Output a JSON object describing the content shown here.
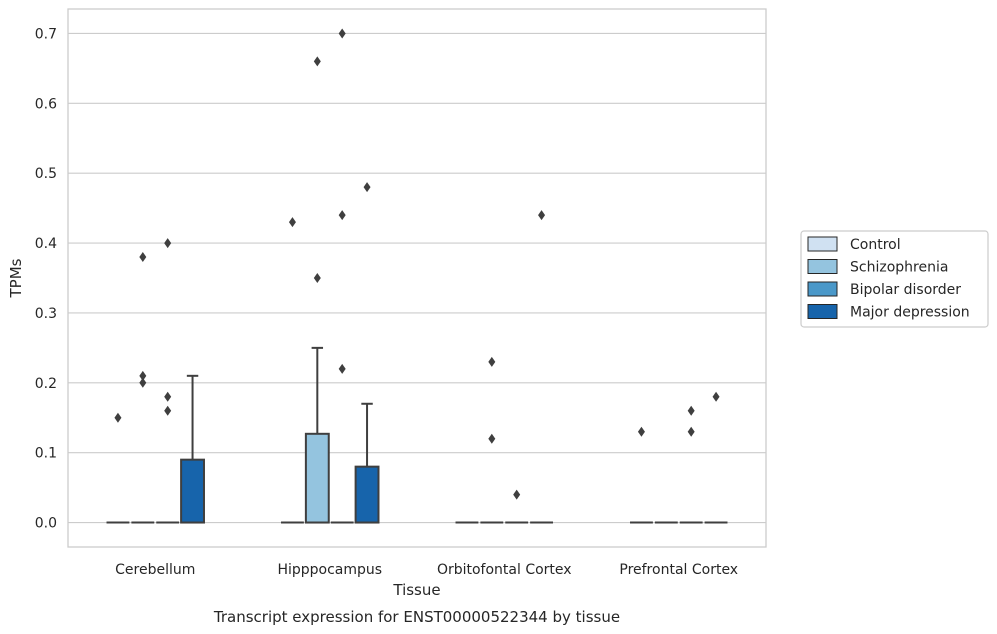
{
  "chart_data": {
    "type": "box",
    "title": "Transcript expression for ENST00000522344 by tissue",
    "xlabel": "Tissue",
    "ylabel": "TPMs",
    "ylim": [
      -0.035,
      0.735
    ],
    "yticks": [
      "0.0",
      "0.1",
      "0.2",
      "0.3",
      "0.4",
      "0.5",
      "0.6",
      "0.7"
    ],
    "grid": "horizontal",
    "legend_position": "right",
    "categories": [
      "Cerebellum",
      "Hipppocampus",
      "Orbitofontal Cortex",
      "Prefrontal Cortex"
    ],
    "series": [
      {
        "name": "Control",
        "color": "#d0e1f2"
      },
      {
        "name": "Schizophrenia",
        "color": "#94c4df"
      },
      {
        "name": "Bipolar disorder",
        "color": "#4a98c9"
      },
      {
        "name": "Major depression",
        "color": "#1764ab"
      }
    ],
    "boxes": [
      {
        "category": "Cerebellum",
        "series": "Control",
        "q1": 0,
        "median": 0,
        "q3": 0,
        "whisker_low": 0,
        "whisker_high": 0,
        "outliers": [
          0.15
        ]
      },
      {
        "category": "Cerebellum",
        "series": "Schizophrenia",
        "q1": 0,
        "median": 0,
        "q3": 0,
        "whisker_low": 0,
        "whisker_high": 0,
        "outliers": [
          0.38,
          0.21,
          0.2
        ]
      },
      {
        "category": "Cerebellum",
        "series": "Bipolar disorder",
        "q1": 0,
        "median": 0,
        "q3": 0,
        "whisker_low": 0,
        "whisker_high": 0,
        "outliers": [
          0.4,
          0.18,
          0.16
        ]
      },
      {
        "category": "Cerebellum",
        "series": "Major depression",
        "q1": 0,
        "median": 0,
        "q3": 0.09,
        "whisker_low": 0,
        "whisker_high": 0.21,
        "outliers": []
      },
      {
        "category": "Hipppocampus",
        "series": "Control",
        "q1": 0,
        "median": 0,
        "q3": 0,
        "whisker_low": 0,
        "whisker_high": 0,
        "outliers": [
          0.43
        ]
      },
      {
        "category": "Hipppocampus",
        "series": "Schizophrenia",
        "q1": 0,
        "median": 0,
        "q3": 0.127,
        "whisker_low": 0,
        "whisker_high": 0.25,
        "outliers": [
          0.66,
          0.35
        ]
      },
      {
        "category": "Hipppocampus",
        "series": "Bipolar disorder",
        "q1": 0,
        "median": 0,
        "q3": 0,
        "whisker_low": 0,
        "whisker_high": 0,
        "outliers": [
          0.7,
          0.44,
          0.22
        ]
      },
      {
        "category": "Hipppocampus",
        "series": "Major depression",
        "q1": 0,
        "median": 0,
        "q3": 0.08,
        "whisker_low": 0,
        "whisker_high": 0.17,
        "outliers": [
          0.48
        ]
      },
      {
        "category": "Orbitofontal Cortex",
        "series": "Control",
        "q1": 0,
        "median": 0,
        "q3": 0,
        "whisker_low": 0,
        "whisker_high": 0,
        "outliers": []
      },
      {
        "category": "Orbitofontal Cortex",
        "series": "Schizophrenia",
        "q1": 0,
        "median": 0,
        "q3": 0,
        "whisker_low": 0,
        "whisker_high": 0,
        "outliers": [
          0.23,
          0.12
        ]
      },
      {
        "category": "Orbitofontal Cortex",
        "series": "Bipolar disorder",
        "q1": 0,
        "median": 0,
        "q3": 0,
        "whisker_low": 0,
        "whisker_high": 0,
        "outliers": [
          0.04
        ]
      },
      {
        "category": "Orbitofontal Cortex",
        "series": "Major depression",
        "q1": 0,
        "median": 0,
        "q3": 0,
        "whisker_low": 0,
        "whisker_high": 0,
        "outliers": [
          0.44
        ]
      },
      {
        "category": "Prefrontal Cortex",
        "series": "Control",
        "q1": 0,
        "median": 0,
        "q3": 0,
        "whisker_low": 0,
        "whisker_high": 0,
        "outliers": [
          0.13
        ]
      },
      {
        "category": "Prefrontal Cortex",
        "series": "Schizophrenia",
        "q1": 0,
        "median": 0,
        "q3": 0,
        "whisker_low": 0,
        "whisker_high": 0,
        "outliers": []
      },
      {
        "category": "Prefrontal Cortex",
        "series": "Bipolar disorder",
        "q1": 0,
        "median": 0,
        "q3": 0,
        "whisker_low": 0,
        "whisker_high": 0,
        "outliers": [
          0.16,
          0.13
        ]
      },
      {
        "category": "Prefrontal Cortex",
        "series": "Major depression",
        "q1": 0,
        "median": 0,
        "q3": 0,
        "whisker_low": 0,
        "whisker_high": 0,
        "outliers": [
          0.18
        ]
      }
    ]
  }
}
